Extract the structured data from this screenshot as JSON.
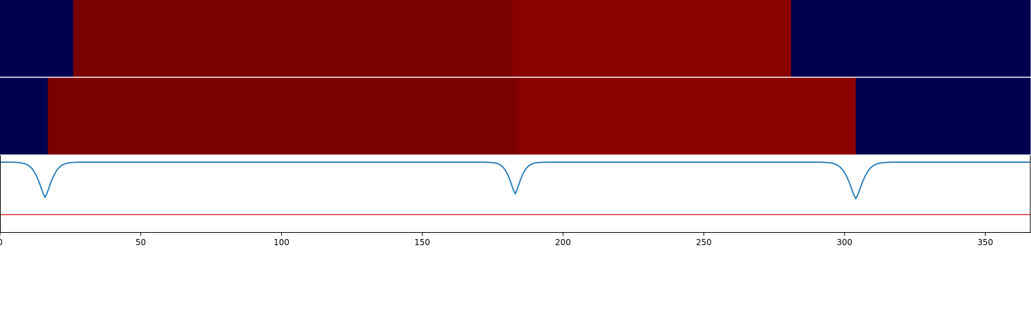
{
  "chart_data": {
    "type": "heatmap",
    "title": "",
    "xlabel": "",
    "ylabel": "",
    "xlim": [
      0,
      366
    ],
    "x_ticks": [
      0,
      50,
      100,
      150,
      200,
      250,
      300,
      350
    ],
    "x_tick_labels": [
      "0",
      "50",
      "100",
      "150",
      "200",
      "250",
      "300",
      "350"
    ],
    "colors": {
      "low": "#000050",
      "high_a": "#7b0000",
      "high_b": "#8b0000",
      "line": "#1f77b4",
      "threshold": "#d62728",
      "separator": "#ffffff",
      "frame": "#000000"
    },
    "rows": [
      {
        "segments": [
          {
            "x_start": 0,
            "x_end": 26,
            "level": "low"
          },
          {
            "x_start": 26,
            "x_end": 182,
            "level": "high_a"
          },
          {
            "x_start": 182,
            "x_end": 281,
            "level": "high_b"
          },
          {
            "x_start": 281,
            "x_end": 366,
            "level": "low"
          }
        ]
      },
      {
        "segments": [
          {
            "x_start": 0,
            "x_end": 17,
            "level": "low"
          },
          {
            "x_start": 17,
            "x_end": 184,
            "level": "high_a"
          },
          {
            "x_start": 184,
            "x_end": 304,
            "level": "high_b"
          },
          {
            "x_start": 304,
            "x_end": 366,
            "level": "low"
          }
        ]
      }
    ],
    "line_panel": {
      "ylim": [
        -1.0,
        0.1
      ],
      "baseline": 0,
      "threshold": -0.75,
      "dips": [
        {
          "x": 16,
          "depth": -0.5,
          "width": 3.2
        },
        {
          "x": 183,
          "depth": -0.45,
          "width": 2.8
        },
        {
          "x": 304,
          "depth": -0.52,
          "width": 3.4
        }
      ]
    }
  }
}
